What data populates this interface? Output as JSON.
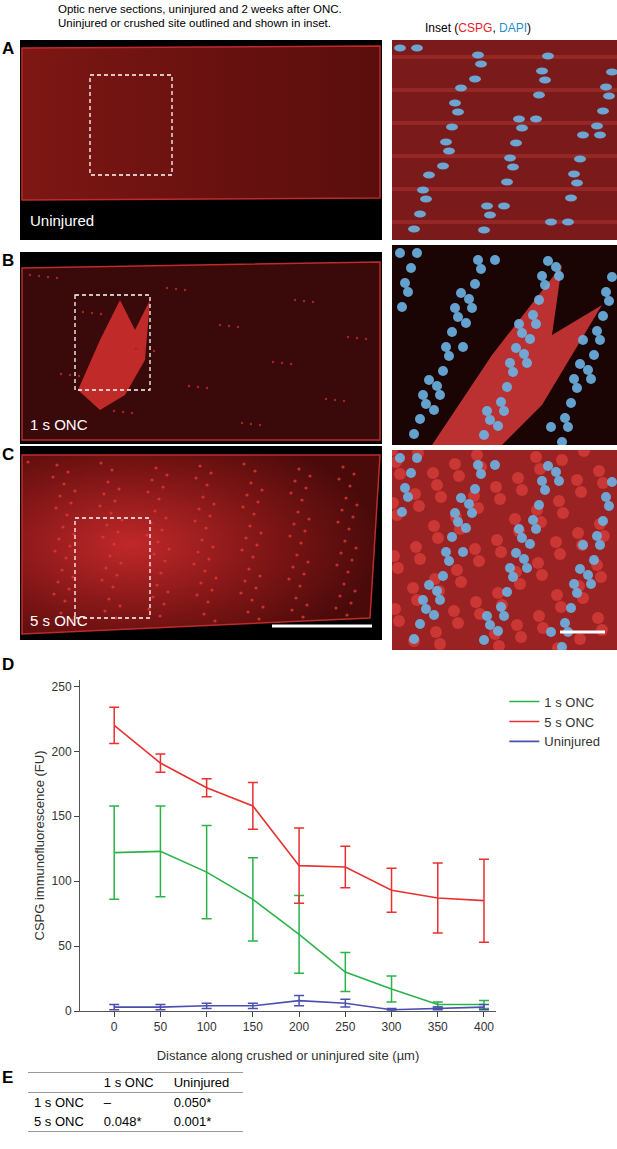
{
  "header": [
    "Optic nerve sections, uninjured and 2 weeks after ONC.",
    "Uninjured or crushed site outlined and shown in inset."
  ],
  "inset_title": [
    {
      "text": "Inset (",
      "color": "#000000"
    },
    {
      "text": "CSPG",
      "color": "#e3232b"
    },
    {
      "text": ", ",
      "color": "#000000"
    },
    {
      "text": "DAPI",
      "color": "#1f8fd0"
    },
    {
      "text": ")",
      "color": "#000000"
    }
  ],
  "panels": [
    {
      "letter": "A",
      "label": "Uninjured"
    },
    {
      "letter": "B",
      "label": "1 s ONC"
    },
    {
      "letter": "C",
      "label": "5 s ONC"
    }
  ],
  "chart_data": {
    "letter": "D",
    "type": "line",
    "x_label": "Distance along crushed or uninjured site (µm)",
    "y_label": "CSPG immunofluorescence (FU)",
    "x": [
      0,
      50,
      100,
      150,
      200,
      250,
      300,
      350,
      400
    ],
    "series": [
      {
        "name": "1 s ONC",
        "color": "#2bb34a",
        "values": [
          122,
          123,
          107,
          86,
          59,
          30,
          17,
          5,
          5
        ],
        "error": [
          36,
          35,
          36,
          32,
          30,
          15,
          10,
          2,
          3
        ]
      },
      {
        "name": "5 s ONC",
        "color": "#e8312f",
        "values": [
          220,
          191,
          172,
          158,
          112,
          111,
          93,
          87,
          85
        ],
        "error": [
          14,
          7,
          7,
          18,
          29,
          16,
          17,
          27,
          32
        ]
      },
      {
        "name": "Uninjured",
        "color": "#4a4fb0",
        "values": [
          3,
          3,
          4,
          4,
          8,
          6,
          1,
          2,
          3
        ],
        "error": [
          2,
          2,
          2,
          2,
          4,
          3,
          1,
          1,
          2
        ]
      }
    ],
    "xlim": [
      -37,
      413
    ],
    "ylim": [
      0,
      255
    ],
    "xticks": [
      0,
      50,
      100,
      150,
      200,
      250,
      300,
      350,
      400
    ],
    "yticks": [
      0,
      50,
      100,
      150,
      200,
      250
    ],
    "grid": false,
    "legend": "upper right"
  },
  "table": {
    "letter": "E",
    "header": [
      null,
      "1 s ONC",
      "Uninjured"
    ],
    "rows": [
      [
        "1 s ONC",
        "–",
        "0.050*"
      ],
      [
        "5 s ONC",
        "0.048*",
        "0.001*"
      ]
    ]
  }
}
